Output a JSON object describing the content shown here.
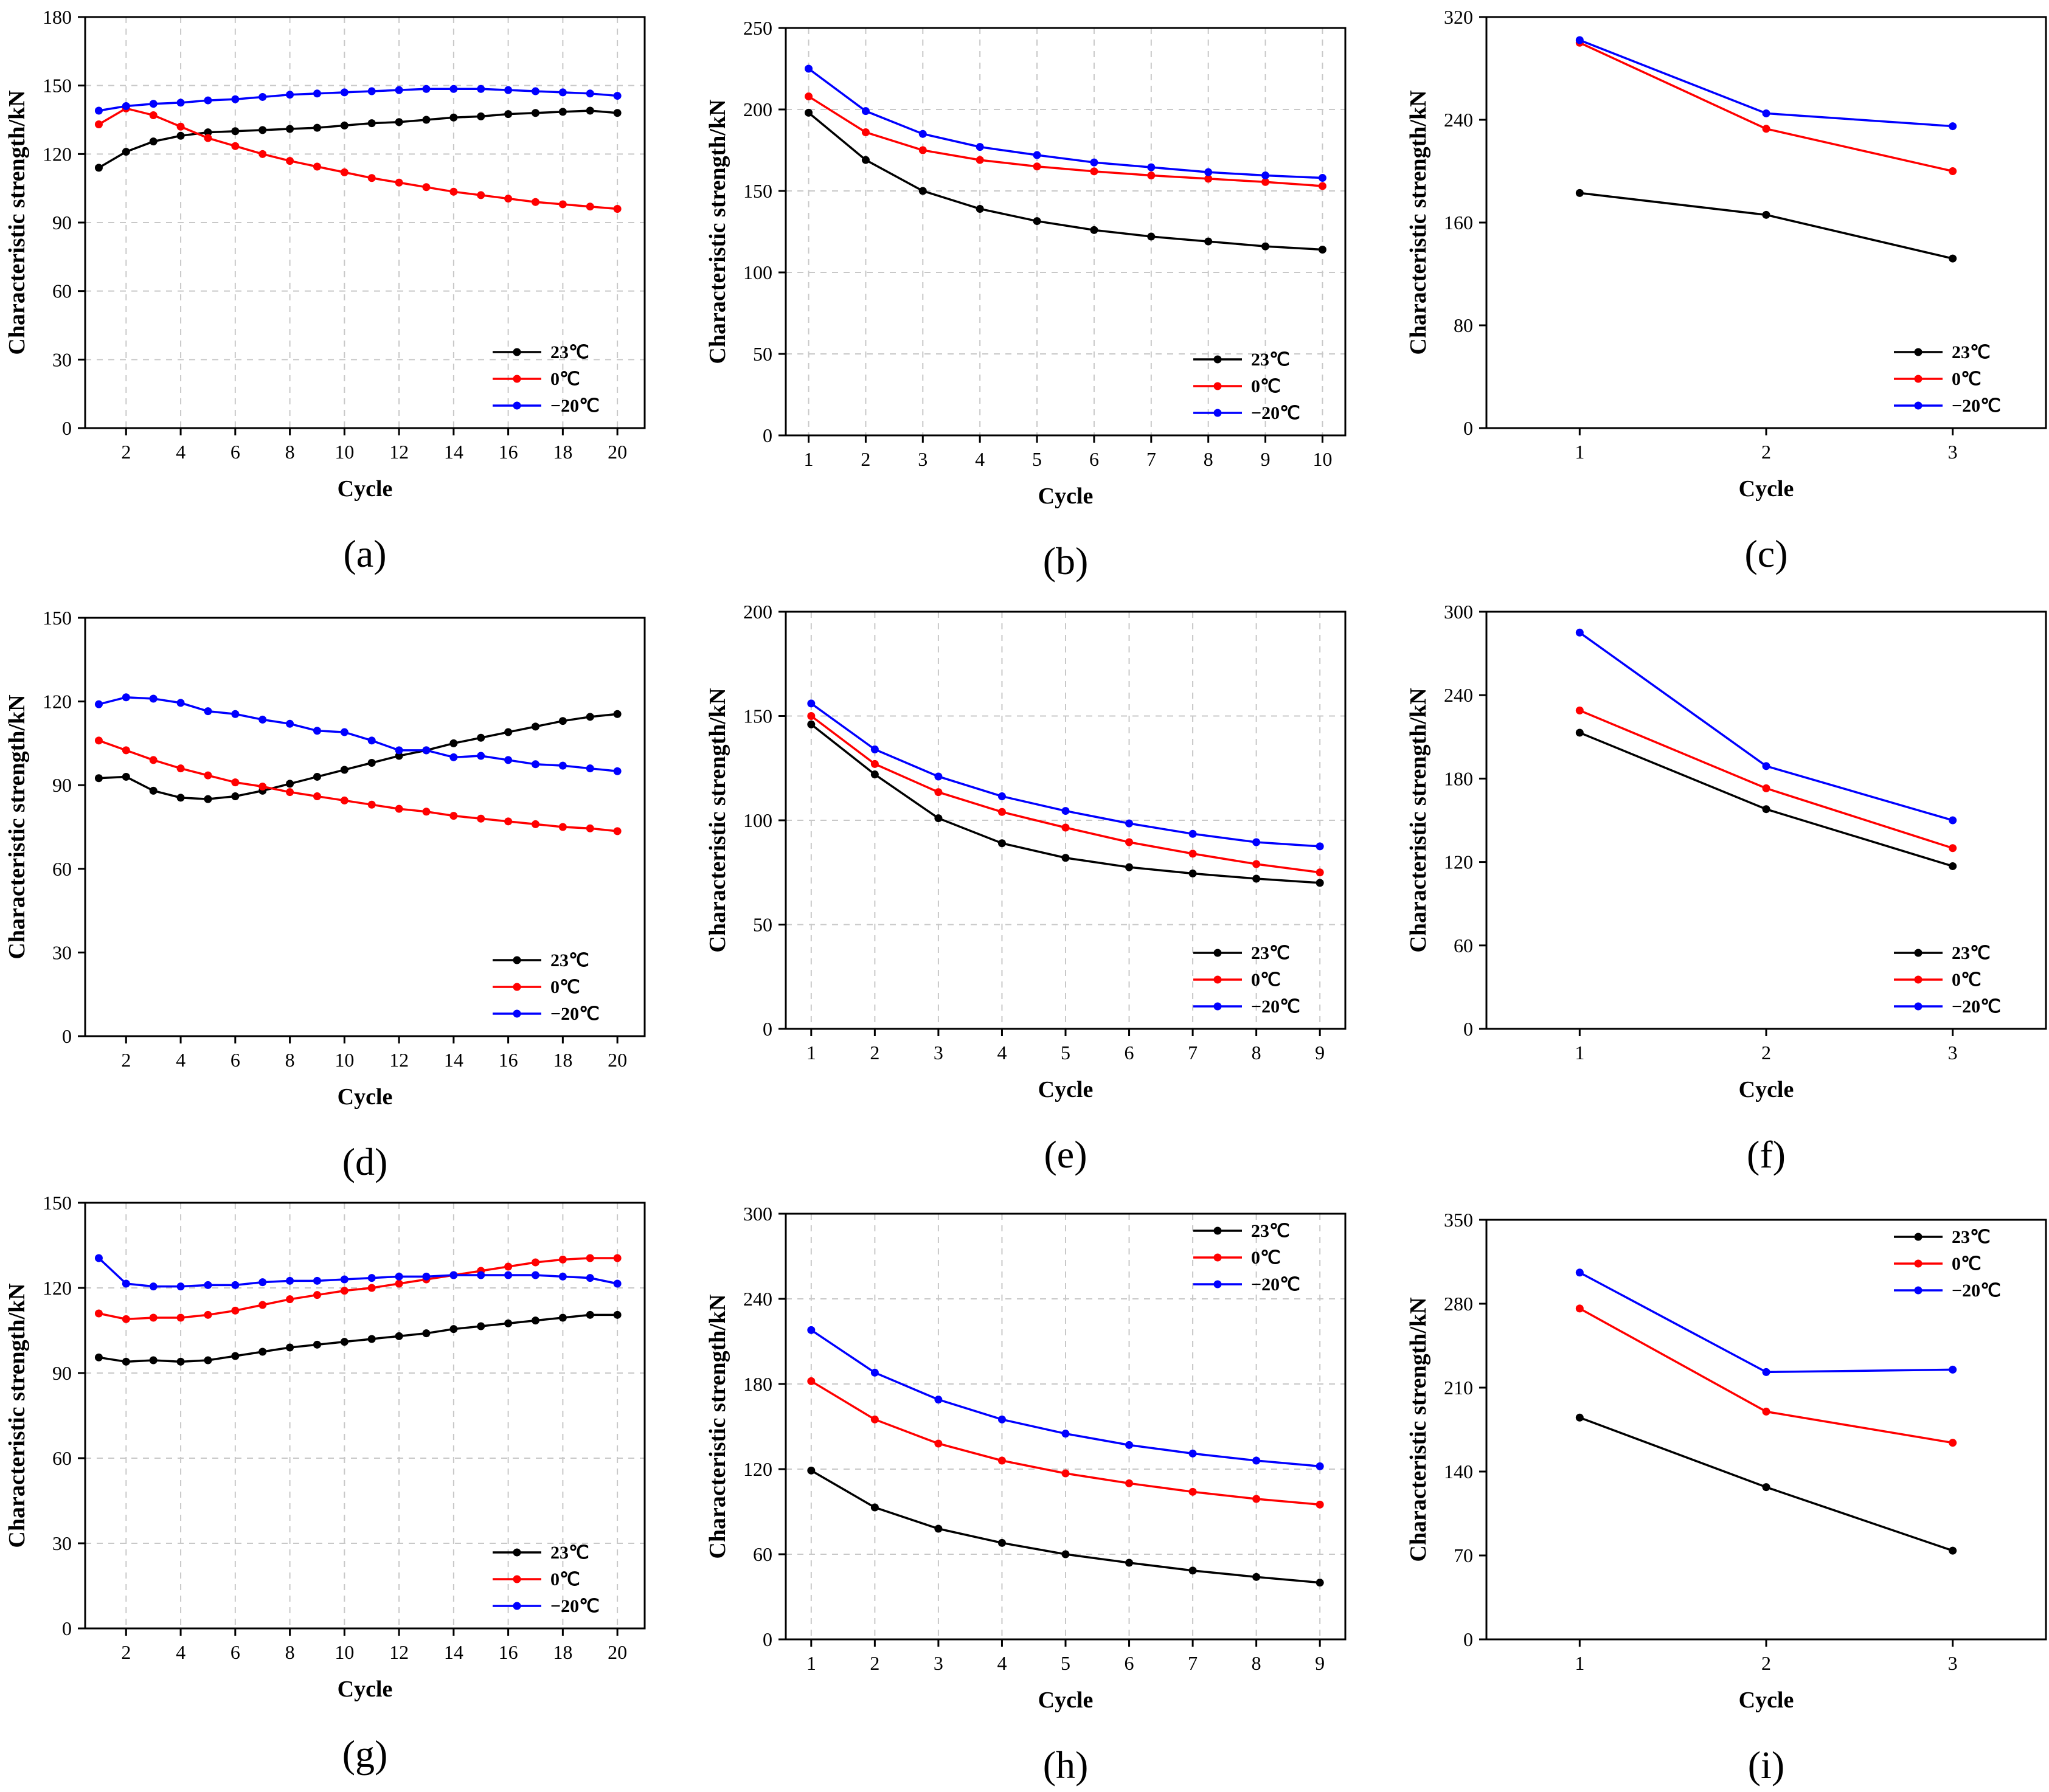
{
  "colors": {
    "black": "#000000",
    "red": "#ff0000",
    "blue": "#0000ff"
  },
  "chart_data": [
    {
      "panel": "(a)",
      "type": "line",
      "xlabel": "Cycle",
      "ylabel": "Characteristic strength/kN",
      "xlim": [
        0.5,
        21
      ],
      "ylim": [
        0,
        180
      ],
      "xticks": [
        2,
        4,
        6,
        8,
        10,
        12,
        14,
        16,
        18,
        20
      ],
      "yticks": [
        0,
        30,
        60,
        90,
        120,
        150,
        180
      ],
      "legend_position": "bottom-right",
      "grid": true,
      "x": [
        1,
        2,
        3,
        4,
        5,
        6,
        7,
        8,
        9,
        10,
        11,
        12,
        13,
        14,
        15,
        16,
        17,
        18,
        19,
        20
      ],
      "series": [
        {
          "name": "23℃",
          "color": "#000000",
          "values": [
            114,
            121,
            125.5,
            128,
            129.5,
            130,
            130.5,
            131,
            131.5,
            132.5,
            133.5,
            134,
            135,
            136,
            136.5,
            137.5,
            138,
            138.5,
            139,
            138
          ]
        },
        {
          "name": "0℃",
          "color": "#ff0000",
          "values": [
            133,
            140,
            137,
            132,
            127,
            123.5,
            120,
            117,
            114.5,
            112,
            109.5,
            107.5,
            105.5,
            103.5,
            102,
            100.5,
            99,
            98,
            97,
            96
          ]
        },
        {
          "name": "−20℃",
          "color": "#0000ff",
          "values": [
            139,
            141,
            142,
            142.5,
            143.5,
            144,
            145,
            146,
            146.5,
            147,
            147.5,
            148,
            148.5,
            148.5,
            148.5,
            148,
            147.5,
            147,
            146.5,
            145.5
          ]
        }
      ]
    },
    {
      "panel": "(b)",
      "type": "line",
      "xlabel": "Cycle",
      "ylabel": "Characteristic strength/kN",
      "xlim": [
        0.6,
        10.4
      ],
      "ylim": [
        0,
        250
      ],
      "xticks": [
        1,
        2,
        3,
        4,
        5,
        6,
        7,
        8,
        9,
        10
      ],
      "yticks": [
        0,
        50,
        100,
        150,
        200,
        250
      ],
      "legend_position": "bottom-right",
      "grid": true,
      "x": [
        1,
        2,
        3,
        4,
        5,
        6,
        7,
        8,
        9,
        10
      ],
      "series": [
        {
          "name": "23℃",
          "color": "#000000",
          "values": [
            198,
            169,
            150,
            139,
            131.5,
            126,
            122,
            119,
            116,
            114
          ]
        },
        {
          "name": "0℃",
          "color": "#ff0000",
          "values": [
            208,
            186,
            175,
            169,
            165,
            162,
            159.5,
            157.5,
            155.5,
            153
          ]
        },
        {
          "name": "−20℃",
          "color": "#0000ff",
          "values": [
            225,
            199,
            185,
            177,
            172,
            167.5,
            164.5,
            161.5,
            159.5,
            158
          ]
        }
      ]
    },
    {
      "panel": "(c)",
      "type": "line",
      "xlabel": "Cycle",
      "ylabel": "Characteristic strength/kN",
      "xlim": [
        0.5,
        3.5
      ],
      "ylim": [
        0,
        320
      ],
      "xticks": [
        1,
        2,
        3
      ],
      "yticks": [
        0,
        80,
        160,
        240,
        320
      ],
      "legend_position": "bottom-right",
      "grid": false,
      "x": [
        1,
        2,
        3
      ],
      "series": [
        {
          "name": "23℃",
          "color": "#000000",
          "values": [
            183,
            166,
            132
          ]
        },
        {
          "name": "0℃",
          "color": "#ff0000",
          "values": [
            300,
            233,
            200
          ]
        },
        {
          "name": "−20℃",
          "color": "#0000ff",
          "values": [
            302,
            245,
            235
          ]
        }
      ]
    },
    {
      "panel": "(d)",
      "type": "line",
      "xlabel": "Cycle",
      "ylabel": "Characteristic strength/kN",
      "xlim": [
        0.5,
        21
      ],
      "ylim": [
        0,
        150
      ],
      "xticks": [
        2,
        4,
        6,
        8,
        10,
        12,
        14,
        16,
        18,
        20
      ],
      "yticks": [
        0,
        30,
        60,
        90,
        120,
        150
      ],
      "legend_position": "bottom-right",
      "grid": false,
      "x": [
        1,
        2,
        3,
        4,
        5,
        6,
        7,
        8,
        9,
        10,
        11,
        12,
        13,
        14,
        15,
        16,
        17,
        18,
        19,
        20
      ],
      "series": [
        {
          "name": "23℃",
          "color": "#000000",
          "values": [
            92.5,
            93,
            88,
            85.5,
            85,
            86,
            88,
            90.5,
            93,
            95.5,
            98,
            100.5,
            102.5,
            105,
            107,
            109,
            111,
            113,
            114.5,
            115.5
          ]
        },
        {
          "name": "0℃",
          "color": "#ff0000",
          "values": [
            106,
            102.5,
            99,
            96,
            93.5,
            91,
            89.5,
            87.5,
            86,
            84.5,
            83,
            81.5,
            80.5,
            79,
            78,
            77,
            76,
            75,
            74.5,
            73.5
          ]
        },
        {
          "name": "−20℃",
          "color": "#0000ff",
          "values": [
            119,
            121.5,
            121,
            119.5,
            116.5,
            115.5,
            113.5,
            112,
            109.5,
            109,
            106,
            102.5,
            102.5,
            100,
            100.5,
            99,
            97.5,
            97,
            96,
            95
          ]
        }
      ]
    },
    {
      "panel": "(e)",
      "type": "line",
      "xlabel": "Cycle",
      "ylabel": "Characteristic strength/kN",
      "xlim": [
        0.6,
        9.4
      ],
      "ylim": [
        0,
        200
      ],
      "xticks": [
        1,
        2,
        3,
        4,
        5,
        6,
        7,
        8,
        9
      ],
      "yticks": [
        0,
        50,
        100,
        150,
        200
      ],
      "legend_position": "bottom-right",
      "grid": true,
      "x": [
        1,
        2,
        3,
        4,
        5,
        6,
        7,
        8,
        9
      ],
      "series": [
        {
          "name": "23℃",
          "color": "#000000",
          "values": [
            146,
            122,
            101,
            89,
            82,
            77.5,
            74.5,
            72,
            70
          ]
        },
        {
          "name": "0℃",
          "color": "#ff0000",
          "values": [
            150,
            127,
            113.5,
            104,
            96.5,
            89.5,
            84,
            79,
            75
          ]
        },
        {
          "name": "−20℃",
          "color": "#0000ff",
          "values": [
            156,
            134,
            121,
            111.5,
            104.5,
            98.5,
            93.5,
            89.5,
            87.5
          ]
        }
      ]
    },
    {
      "panel": "(f)",
      "type": "line",
      "xlabel": "Cycle",
      "ylabel": "Characteristic strength/kN",
      "xlim": [
        0.5,
        3.5
      ],
      "ylim": [
        0,
        300
      ],
      "xticks": [
        1,
        2,
        3
      ],
      "yticks": [
        0,
        60,
        120,
        180,
        240,
        300
      ],
      "legend_position": "bottom-right",
      "grid": false,
      "x": [
        1,
        2,
        3
      ],
      "series": [
        {
          "name": "23℃",
          "color": "#000000",
          "values": [
            213,
            158,
            117
          ]
        },
        {
          "name": "0℃",
          "color": "#ff0000",
          "values": [
            229,
            173,
            130
          ]
        },
        {
          "name": "−20℃",
          "color": "#0000ff",
          "values": [
            285,
            189,
            150
          ]
        }
      ]
    },
    {
      "panel": "(g)",
      "type": "line",
      "xlabel": "Cycle",
      "ylabel": "Characteristic strength/kN",
      "xlim": [
        0.5,
        21
      ],
      "ylim": [
        0,
        150
      ],
      "xticks": [
        2,
        4,
        6,
        8,
        10,
        12,
        14,
        16,
        18,
        20
      ],
      "yticks": [
        0,
        30,
        60,
        90,
        120,
        150
      ],
      "legend_position": "bottom-right",
      "grid": true,
      "x": [
        1,
        2,
        3,
        4,
        5,
        6,
        7,
        8,
        9,
        10,
        11,
        12,
        13,
        14,
        15,
        16,
        17,
        18,
        19,
        20
      ],
      "series": [
        {
          "name": "23℃",
          "color": "#000000",
          "values": [
            95.5,
            94,
            94.5,
            94,
            94.5,
            96,
            97.5,
            99,
            100,
            101,
            102,
            103,
            104,
            105.5,
            106.5,
            107.5,
            108.5,
            109.5,
            110.5,
            110.5
          ]
        },
        {
          "name": "0℃",
          "color": "#ff0000",
          "values": [
            111,
            109,
            109.5,
            109.5,
            110.5,
            112,
            114,
            116,
            117.5,
            119,
            120,
            121.5,
            123,
            124.5,
            126,
            127.5,
            129,
            130,
            130.5,
            130.5
          ]
        },
        {
          "name": "−20℃",
          "color": "#0000ff",
          "values": [
            130.5,
            121.5,
            120.5,
            120.5,
            121,
            121,
            122,
            122.5,
            122.5,
            123,
            123.5,
            124,
            124,
            124.5,
            124.5,
            124.5,
            124.5,
            124,
            123.5,
            121.5
          ]
        }
      ]
    },
    {
      "panel": "(h)",
      "type": "line",
      "xlabel": "Cycle",
      "ylabel": "Characteristic strength/kN",
      "xlim": [
        0.6,
        9.4
      ],
      "ylim": [
        0,
        300
      ],
      "xticks": [
        1,
        2,
        3,
        4,
        5,
        6,
        7,
        8,
        9
      ],
      "yticks": [
        0,
        60,
        120,
        180,
        240,
        300
      ],
      "legend_position": "top-right",
      "grid": true,
      "x": [
        1,
        2,
        3,
        4,
        5,
        6,
        7,
        8,
        9
      ],
      "series": [
        {
          "name": "23℃",
          "color": "#000000",
          "values": [
            119,
            93,
            78,
            68,
            60,
            54,
            48.5,
            44,
            40
          ]
        },
        {
          "name": "0℃",
          "color": "#ff0000",
          "values": [
            182,
            155,
            138,
            126,
            117,
            110,
            104,
            99,
            95
          ]
        },
        {
          "name": "−20℃",
          "color": "#0000ff",
          "values": [
            218,
            188,
            169,
            155,
            145,
            137,
            131,
            126,
            122
          ]
        }
      ]
    },
    {
      "panel": "(i)",
      "type": "line",
      "xlabel": "Cycle",
      "ylabel": "Characteristic strength/kN",
      "xlim": [
        0.5,
        3.5
      ],
      "ylim": [
        0,
        350
      ],
      "xticks": [
        1,
        2,
        3
      ],
      "yticks": [
        0,
        70,
        140,
        210,
        280,
        350
      ],
      "legend_position": "top-right",
      "grid": false,
      "x": [
        1,
        2,
        3
      ],
      "series": [
        {
          "name": "23℃",
          "color": "#000000",
          "values": [
            185,
            127,
            74
          ]
        },
        {
          "name": "0℃",
          "color": "#ff0000",
          "values": [
            276,
            190,
            164
          ]
        },
        {
          "name": "−20℃",
          "color": "#0000ff",
          "values": [
            306,
            223,
            225
          ]
        }
      ]
    }
  ]
}
